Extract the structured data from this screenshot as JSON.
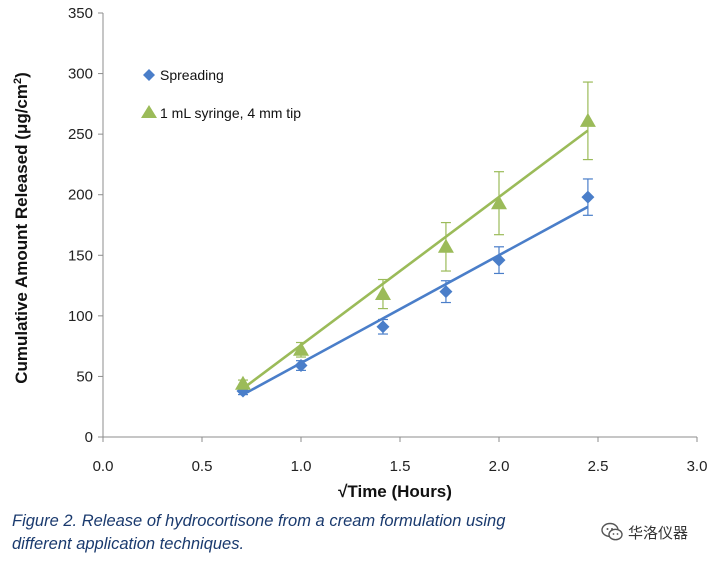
{
  "chart_data": {
    "type": "scatter",
    "xlabel": "√Time (Hours)",
    "ylabel_prefix": "Cumulative Amount Released (μg/cm",
    "ylabel_sup": "2",
    "ylabel_suffix": ")",
    "xlim": [
      0,
      3.0
    ],
    "ylim": [
      0,
      350
    ],
    "xticks": [
      0,
      0.5,
      1.0,
      1.5,
      2.0,
      2.5,
      3.0
    ],
    "xtick_labels": [
      "0.0",
      "0.5",
      "1.0",
      "1.5",
      "2.0",
      "2.5",
      "3.0"
    ],
    "yticks": [
      0,
      50,
      100,
      150,
      200,
      250,
      300,
      350
    ],
    "ytick_labels": [
      "0",
      "50",
      "100",
      "150",
      "200",
      "250",
      "300",
      "350"
    ],
    "grid": false,
    "legend_position": "top-left",
    "series": [
      {
        "name": "Spreading",
        "marker": "diamond",
        "color": "#4a7ec9",
        "x": [
          0.707,
          1.0,
          1.414,
          1.732,
          2.0,
          2.449
        ],
        "y": [
          38,
          59,
          91,
          120,
          146,
          198
        ],
        "yerr": [
          3,
          4,
          6,
          9,
          11,
          15
        ],
        "trendline": [
          [
            0.707,
            35
          ],
          [
            2.449,
            190
          ]
        ]
      },
      {
        "name": "1 mL syringe, 4 mm tip",
        "marker": "triangle",
        "color": "#9bbb59",
        "x": [
          0.707,
          1.0,
          1.414,
          1.732,
          2.0,
          2.449
        ],
        "y": [
          44,
          72,
          118,
          157,
          193,
          261
        ],
        "yerr": [
          3,
          6,
          12,
          20,
          26,
          32
        ],
        "trendline": [
          [
            0.707,
            40
          ],
          [
            2.449,
            253
          ]
        ]
      }
    ]
  },
  "caption": {
    "line1": "Figure 2. Release of hydrocortisone from a cream formulation using",
    "line2": "different application techniques."
  },
  "watermark": {
    "text": "华洛仪器",
    "icon": "wechat-icon"
  }
}
